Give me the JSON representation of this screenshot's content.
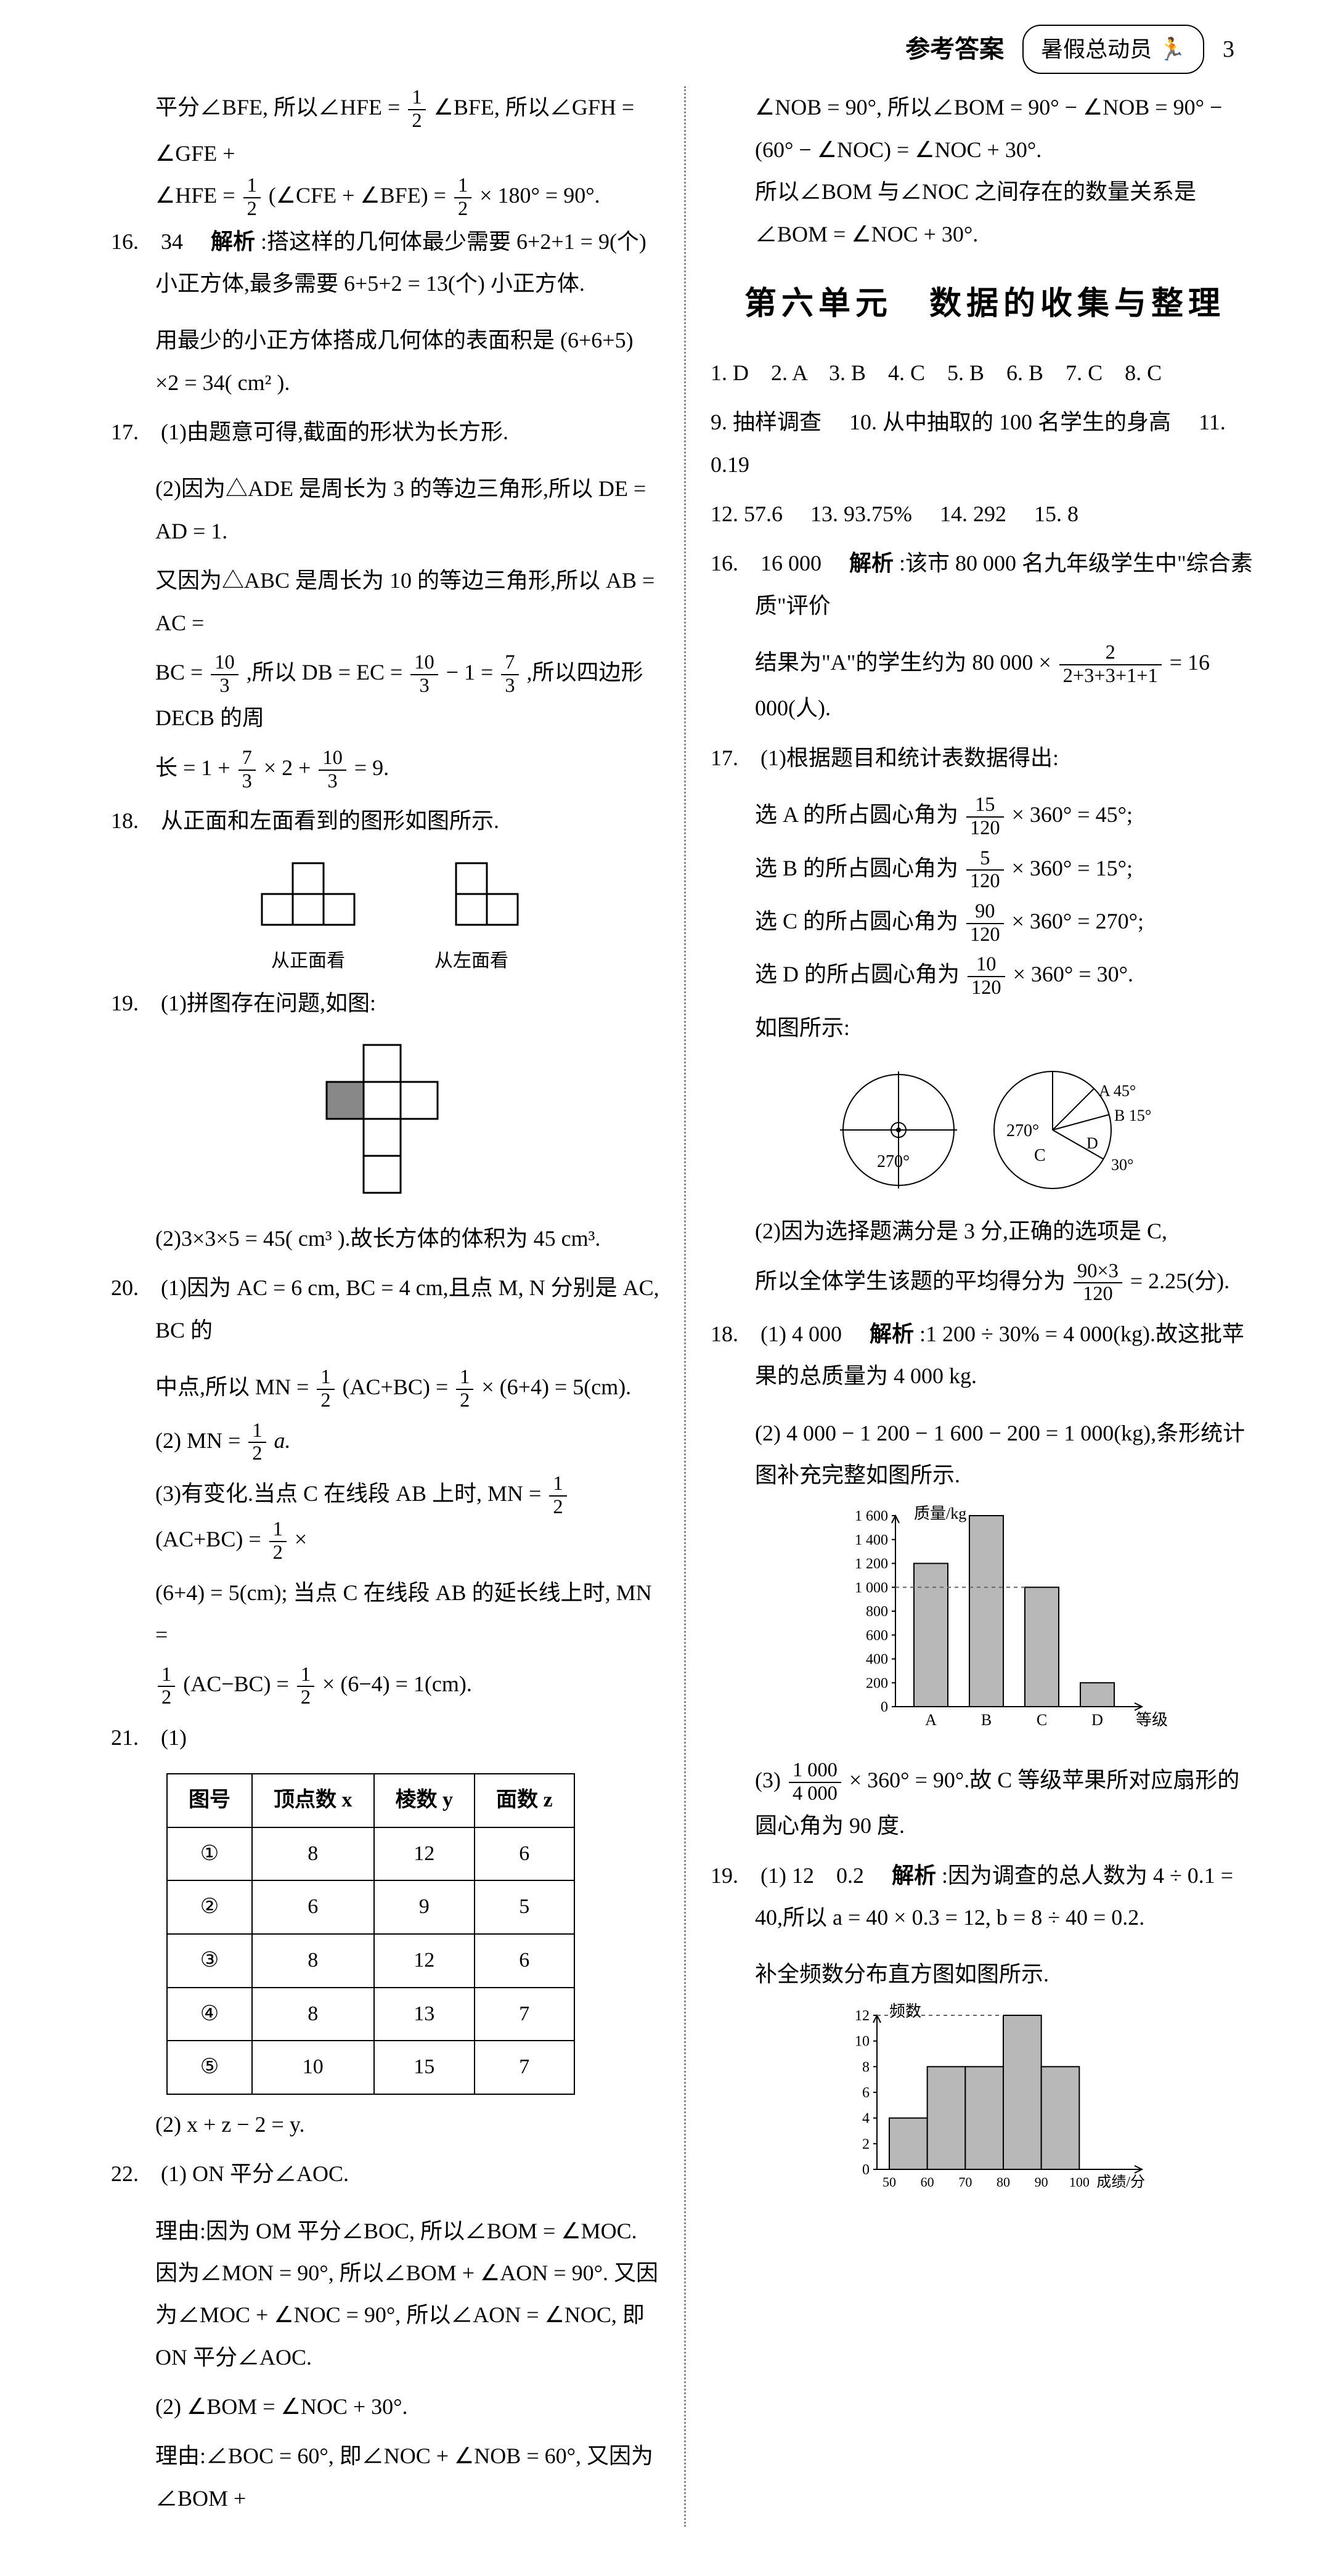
{
  "header": {
    "section": "参考答案",
    "badge": "暑假总动员",
    "page": "3"
  },
  "left": {
    "intro1": "平分∠BFE, 所以∠HFE = ",
    "intro1b": "∠BFE, 所以∠GFH = ∠GFE +",
    "intro2a": "∠HFE = ",
    "intro2b": "(∠CFE + ∠BFE) = ",
    "intro2c": " × 180° = 90°.",
    "q16": {
      "num": "16.",
      "ans": "34",
      "label": "解析",
      "t1": ":搭这样的几何体最少需要 6+2+1 = 9(个) 小正方体,最多需要 6+5+2 = 13(个) 小正方体.",
      "t2": "用最少的小正方体搭成几何体的表面积是 (6+6+5) ×2 = 34( cm² )."
    },
    "q17": {
      "num": "17.",
      "p1": "(1)由题意可得,截面的形状为长方形.",
      "p2a": "(2)因为△ADE 是周长为 3 的等边三角形,所以 DE = AD = 1.",
      "p2b": "又因为△ABC 是周长为 10 的等边三角形,所以 AB = AC =",
      "p2c": "BC = ",
      "p2d": ",所以 DB = EC = ",
      "p2e": " − 1 = ",
      "p2f": ",所以四边形 DECB 的周",
      "p2g": "长 = 1 + ",
      "p2h": " × 2 + ",
      "p2i": " = 9."
    },
    "q18": {
      "num": "18.",
      "t": "从正面和左面看到的图形如图所示.",
      "cap1": "从正面看",
      "cap2": "从左面看"
    },
    "q19": {
      "num": "19.",
      "p1": "(1)拼图存在问题,如图:",
      "p2": "(2)3×3×5 = 45( cm³ ).故长方体的体积为 45 cm³."
    },
    "q20": {
      "num": "20.",
      "p1a": "(1)因为 AC = 6 cm, BC = 4 cm,且点 M, N 分别是 AC, BC 的",
      "p1b": "中点,所以 MN = ",
      "p1c": "(AC+BC) = ",
      "p1d": " × (6+4) = 5(cm).",
      "p2a": "(2) MN = ",
      "p2b": "a.",
      "p3a": "(3)有变化.当点 C 在线段 AB 上时, MN = ",
      "p3b": "(AC+BC) = ",
      "p3c": " ×",
      "p3d": "(6+4) = 5(cm); 当点 C 在线段 AB 的延长线上时, MN =",
      "p3e": "(AC−BC) = ",
      "p3f": " × (6−4) = 1(cm)."
    },
    "q21": {
      "num": "21.",
      "p1": "(1)",
      "table": {
        "headers": [
          "图号",
          "顶点数 x",
          "棱数 y",
          "面数 z"
        ],
        "rows": [
          [
            "①",
            "8",
            "12",
            "6"
          ],
          [
            "②",
            "6",
            "9",
            "5"
          ],
          [
            "③",
            "8",
            "12",
            "6"
          ],
          [
            "④",
            "8",
            "13",
            "7"
          ],
          [
            "⑤",
            "10",
            "15",
            "7"
          ]
        ]
      },
      "p2": "(2) x + z − 2 = y."
    },
    "q22": {
      "num": "22.",
      "p1": "(1) ON 平分∠AOC.",
      "p2": "理由:因为 OM 平分∠BOC, 所以∠BOM = ∠MOC. 因为∠MON = 90°, 所以∠BOM + ∠AON = 90°. 又因为∠MOC + ∠NOC = 90°, 所以∠AON = ∠NOC, 即 ON 平分∠AOC.",
      "p3": "(2) ∠BOM = ∠NOC + 30°.",
      "p4": "理由:∠BOC = 60°, 即∠NOC + ∠NOB = 60°, 又因为∠BOM +"
    }
  },
  "right": {
    "cont1": "∠NOB = 90°, 所以∠BOM = 90° − ∠NOB = 90° − (60° − ∠NOC) = ∠NOC + 30°.",
    "cont2": "所以∠BOM 与∠NOC 之间存在的数量关系是∠BOM = ∠NOC + 30°.",
    "unit_title": "第六单元　数据的收集与整理",
    "answers": "1. D　2. A　3. B　4. C　5. B　6. B　7. C　8. C",
    "a9": "9. 抽样调查",
    "a10": "10. 从中抽取的 100 名学生的身高",
    "a11": "11. 0.19",
    "a12": "12. 57.6",
    "a13": "13. 93.75%",
    "a14": "14. 292",
    "a15": "15. 8",
    "q16": {
      "num": "16.",
      "ans": "16 000",
      "label": "解析",
      "t1": ":该市 80 000 名九年级学生中\"综合素质\"评价",
      "t2a": "结果为\"A\"的学生约为 80 000 × ",
      "t2n": "2",
      "t2d": "2+3+3+1+1",
      "t2b": " = 16 000(人)."
    },
    "q17": {
      "num": "17.",
      "p0": "(1)根据题目和统计表数据得出:",
      "pA": "选 A 的所占圆心角为 ",
      "pAb": " × 360° = 45°;",
      "pB": "选 B 的所占圆心角为 ",
      "pBb": " × 360° = 15°;",
      "pC": "选 C 的所占圆心角为 ",
      "pCb": " × 360° = 270°;",
      "pD": "选 D 的所占圆心角为 ",
      "pDb": " × 360° = 30°.",
      "pie_caption": "如图所示:",
      "pie_labels": {
        "A": "A 45°",
        "B": "B 15°",
        "C": "C",
        "D": "D",
        "c270": "270°",
        "d30": "30°",
        "small270": "270°"
      },
      "p2a": "(2)因为选择题满分是 3 分,正确的选项是 C,",
      "p2b": "所以全体学生该题的平均得分为 ",
      "p2n": "90×3",
      "p2d": "120",
      "p2c": " = 2.25(分)."
    },
    "q18": {
      "num": "18.",
      "p1": "(1) 4 000",
      "label": "解析",
      "t1": ":1 200 ÷ 30% = 4 000(kg).故这批苹果的总质量为 4 000 kg.",
      "p2": "(2) 4 000 − 1 200 − 1 600 − 200 = 1 000(kg),条形统计图补充完整如图所示.",
      "bar": {
        "ylabel": "质量/kg",
        "xlabel": "等级",
        "yticks": [
          "0",
          "200",
          "400",
          "600",
          "800",
          "1 000",
          "1 200",
          "1 400",
          "1 600"
        ],
        "categories": [
          "A",
          "B",
          "C",
          "D"
        ],
        "values": [
          1200,
          1600,
          1000,
          200
        ],
        "ymax": 1600,
        "bar_color": "#b8b8b8",
        "grid_color": "#000000",
        "dashed_color": "#666666"
      },
      "p3a": "(3) ",
      "p3n": "1 000",
      "p3d": "4 000",
      "p3b": " × 360° = 90°.故 C 等级苹果所对应扇形的圆心角为 90 度."
    },
    "q19": {
      "num": "19.",
      "p1": "(1) 12　0.2",
      "label": "解析",
      "t1": ":因为调查的总人数为 4 ÷ 0.1 = 40,所以 a = 40 × 0.3 = 12, b = 8 ÷ 40 = 0.2.",
      "p2": "补全频数分布直方图如图所示.",
      "hist": {
        "ylabel": "频数",
        "xlabel": "成绩/分",
        "yticks": [
          "0",
          "2",
          "4",
          "6",
          "8",
          "10",
          "12"
        ],
        "xticks": [
          "50",
          "60",
          "70",
          "80",
          "90",
          "100"
        ],
        "values": [
          4,
          8,
          8,
          12,
          8
        ],
        "ymax": 12,
        "bar_color": "#b8b8b8"
      }
    }
  },
  "fractions": {
    "half": {
      "n": "1",
      "d": "2"
    },
    "ten3": {
      "n": "10",
      "d": "3"
    },
    "seven3": {
      "n": "7",
      "d": "3"
    },
    "f15_120": {
      "n": "15",
      "d": "120"
    },
    "f5_120": {
      "n": "5",
      "d": "120"
    },
    "f90_120": {
      "n": "90",
      "d": "120"
    },
    "f10_120": {
      "n": "10",
      "d": "120"
    }
  }
}
